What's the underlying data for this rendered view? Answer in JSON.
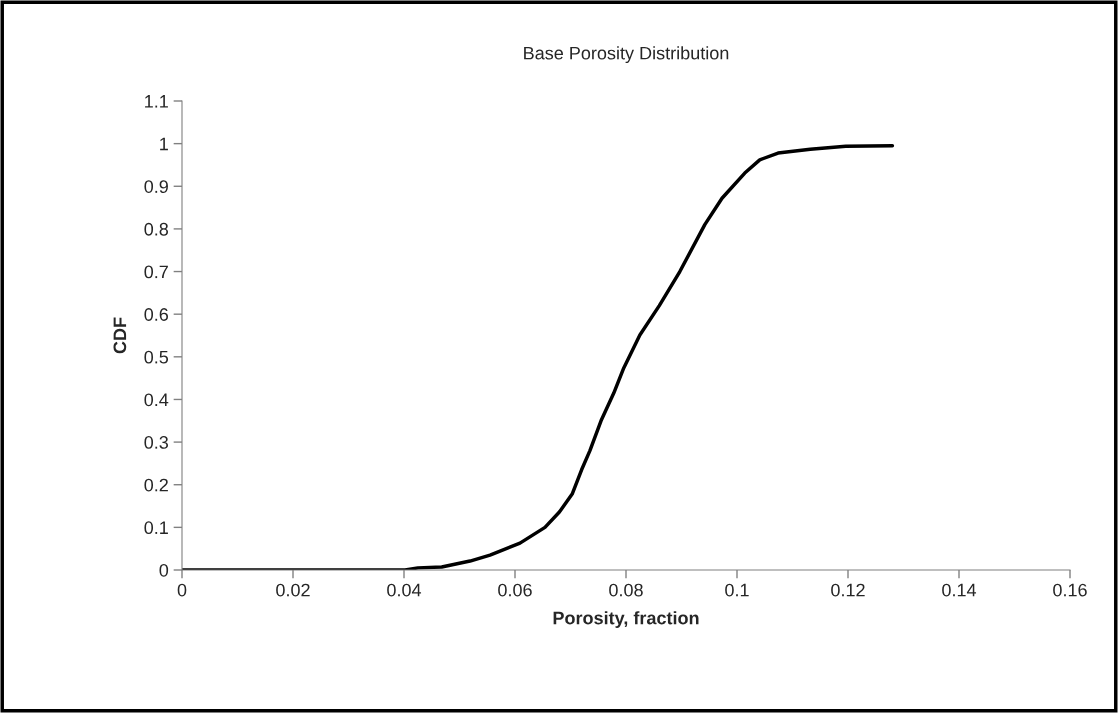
{
  "chart_data": {
    "type": "line",
    "title": "Base Porosity Distribution",
    "xlabel": "Porosity, fraction",
    "ylabel": "CDF",
    "x": [
      0,
      0.0402,
      0.0425,
      0.0468,
      0.0519,
      0.0555,
      0.0609,
      0.0654,
      0.068,
      0.0703,
      0.072,
      0.0735,
      0.0755,
      0.0778,
      0.0796,
      0.0825,
      0.086,
      0.0897,
      0.0942,
      0.0973,
      0.1014,
      0.1041,
      0.1074,
      0.1132,
      0.1196,
      0.128
    ],
    "series": [
      {
        "color": "#000000",
        "values": [
          0,
          0,
          0.005,
          0.007,
          0.021,
          0.035,
          0.063,
          0.1,
          0.136,
          0.178,
          0.235,
          0.28,
          0.35,
          0.415,
          0.474,
          0.551,
          0.62,
          0.7,
          0.81,
          0.872,
          0.931,
          0.962,
          0.978,
          0.987,
          0.994,
          0.995
        ]
      }
    ],
    "xlim": [
      0,
      0.16
    ],
    "xticks": [
      0,
      0.02,
      0.04,
      0.06,
      0.08,
      0.1,
      0.12,
      0.14,
      0.16
    ],
    "ylim": [
      0,
      1.1
    ],
    "yticks": [
      0,
      0.1,
      0.2,
      0.3,
      0.4,
      0.5,
      0.6,
      0.7,
      0.8,
      0.9,
      1,
      1.1
    ],
    "grid": false,
    "marker": "none",
    "line_style": "solid"
  }
}
